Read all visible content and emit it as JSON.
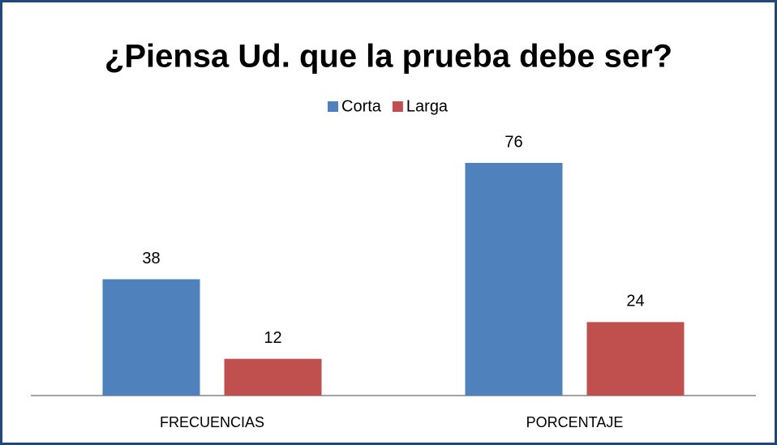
{
  "chart_data": {
    "type": "bar",
    "title": "¿Piensa Ud. que la prueba debe ser?",
    "categories": [
      "FRECUENCIAS",
      "PORCENTAJE"
    ],
    "series": [
      {
        "name": "Corta",
        "color": "#4f81bd",
        "values": [
          38,
          76
        ]
      },
      {
        "name": "Larga",
        "color": "#c0504d",
        "values": [
          12,
          24
        ]
      }
    ]
  }
}
